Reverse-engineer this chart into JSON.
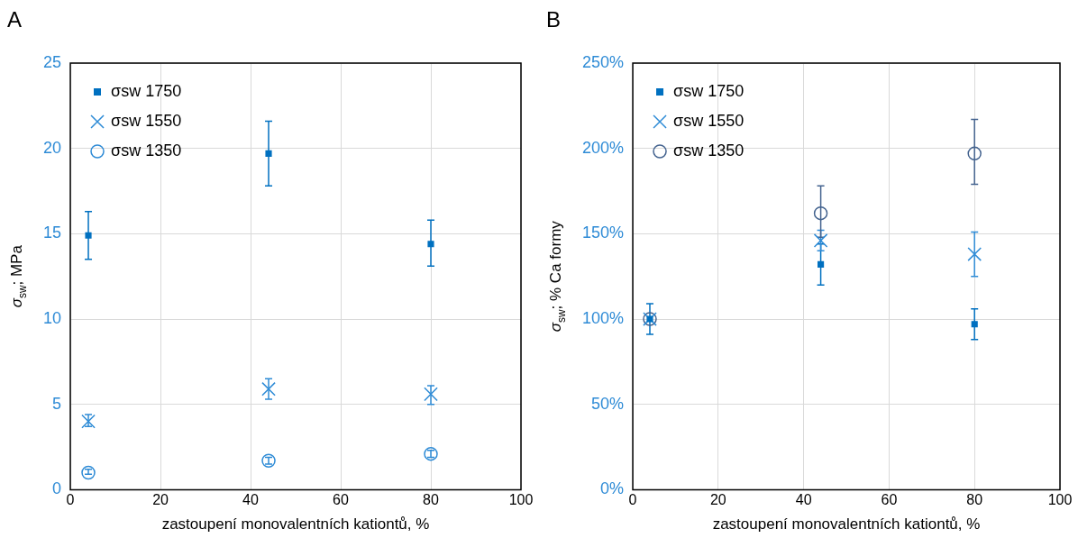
{
  "chart_data": [
    {
      "type": "scatter",
      "title": "A",
      "xlabel": "zastoupení monovalentních kationtů, %",
      "ylabel": "σ$_{sw}$; MPa",
      "x": [
        4,
        44,
        80
      ],
      "xlim": [
        0,
        100
      ],
      "xticks": [
        0,
        20,
        40,
        60,
        80,
        100
      ],
      "ylim": [
        0,
        25
      ],
      "yticks": [
        0,
        5,
        10,
        15,
        20,
        25
      ],
      "grid": true,
      "legend": "top left",
      "series": [
        {
          "name": "σsw 1750",
          "color": "#0070c0",
          "marker": "square",
          "values": [
            14.9,
            19.7,
            14.4
          ],
          "errors": [
            [
              13.5,
              16.3
            ],
            [
              17.8,
              21.6
            ],
            [
              13.1,
              15.8
            ]
          ]
        },
        {
          "name": "σsw 1550",
          "color": "#2e8bd6",
          "marker": "cross",
          "values": [
            4.0,
            5.9,
            5.6
          ],
          "errors": [
            [
              3.7,
              4.4
            ],
            [
              5.3,
              6.5
            ],
            [
              5.0,
              6.1
            ]
          ]
        },
        {
          "name": "σsw 1350",
          "color": "#2e8bd6",
          "marker": "circle",
          "values": [
            1.0,
            1.7,
            2.1
          ],
          "errors": [
            [
              0.9,
              1.2
            ],
            [
              1.5,
              1.9
            ],
            [
              1.9,
              2.3
            ]
          ]
        }
      ]
    },
    {
      "type": "scatter",
      "title": "B",
      "xlabel": "zastoupení monovalentních kationtů, %",
      "ylabel": "σ$_{sw}$; % Ca formy",
      "x": [
        4,
        44,
        80
      ],
      "xlim": [
        0,
        100
      ],
      "xticks": [
        0,
        20,
        40,
        60,
        80,
        100
      ],
      "ylim": [
        0,
        250
      ],
      "yticks": [
        {
          "value": 0,
          "label": "0%"
        },
        {
          "value": 50,
          "label": "50%"
        },
        {
          "value": 100,
          "label": "100%"
        },
        {
          "value": 150,
          "label": "150%"
        },
        {
          "value": 200,
          "label": "200%"
        },
        {
          "value": 250,
          "label": "250%"
        }
      ],
      "grid": true,
      "legend": "top left",
      "series": [
        {
          "name": "σsw 1750",
          "color": "#0070c0",
          "marker": "square",
          "values": [
            100,
            132,
            97
          ],
          "errors": [
            [
              91,
              109
            ],
            [
              120,
              144
            ],
            [
              88,
              106
            ]
          ]
        },
        {
          "name": "σsw 1550",
          "color": "#2e8bd6",
          "marker": "cross",
          "values": [
            100,
            146,
            138
          ],
          "errors": [
            null,
            [
              140,
              152
            ],
            [
              125,
              151
            ]
          ]
        },
        {
          "name": "σsw 1350",
          "color": "#44638f",
          "marker": "circle",
          "values": [
            100,
            162,
            197
          ],
          "errors": [
            null,
            [
              148,
              178
            ],
            [
              179,
              217
            ]
          ]
        }
      ]
    }
  ]
}
